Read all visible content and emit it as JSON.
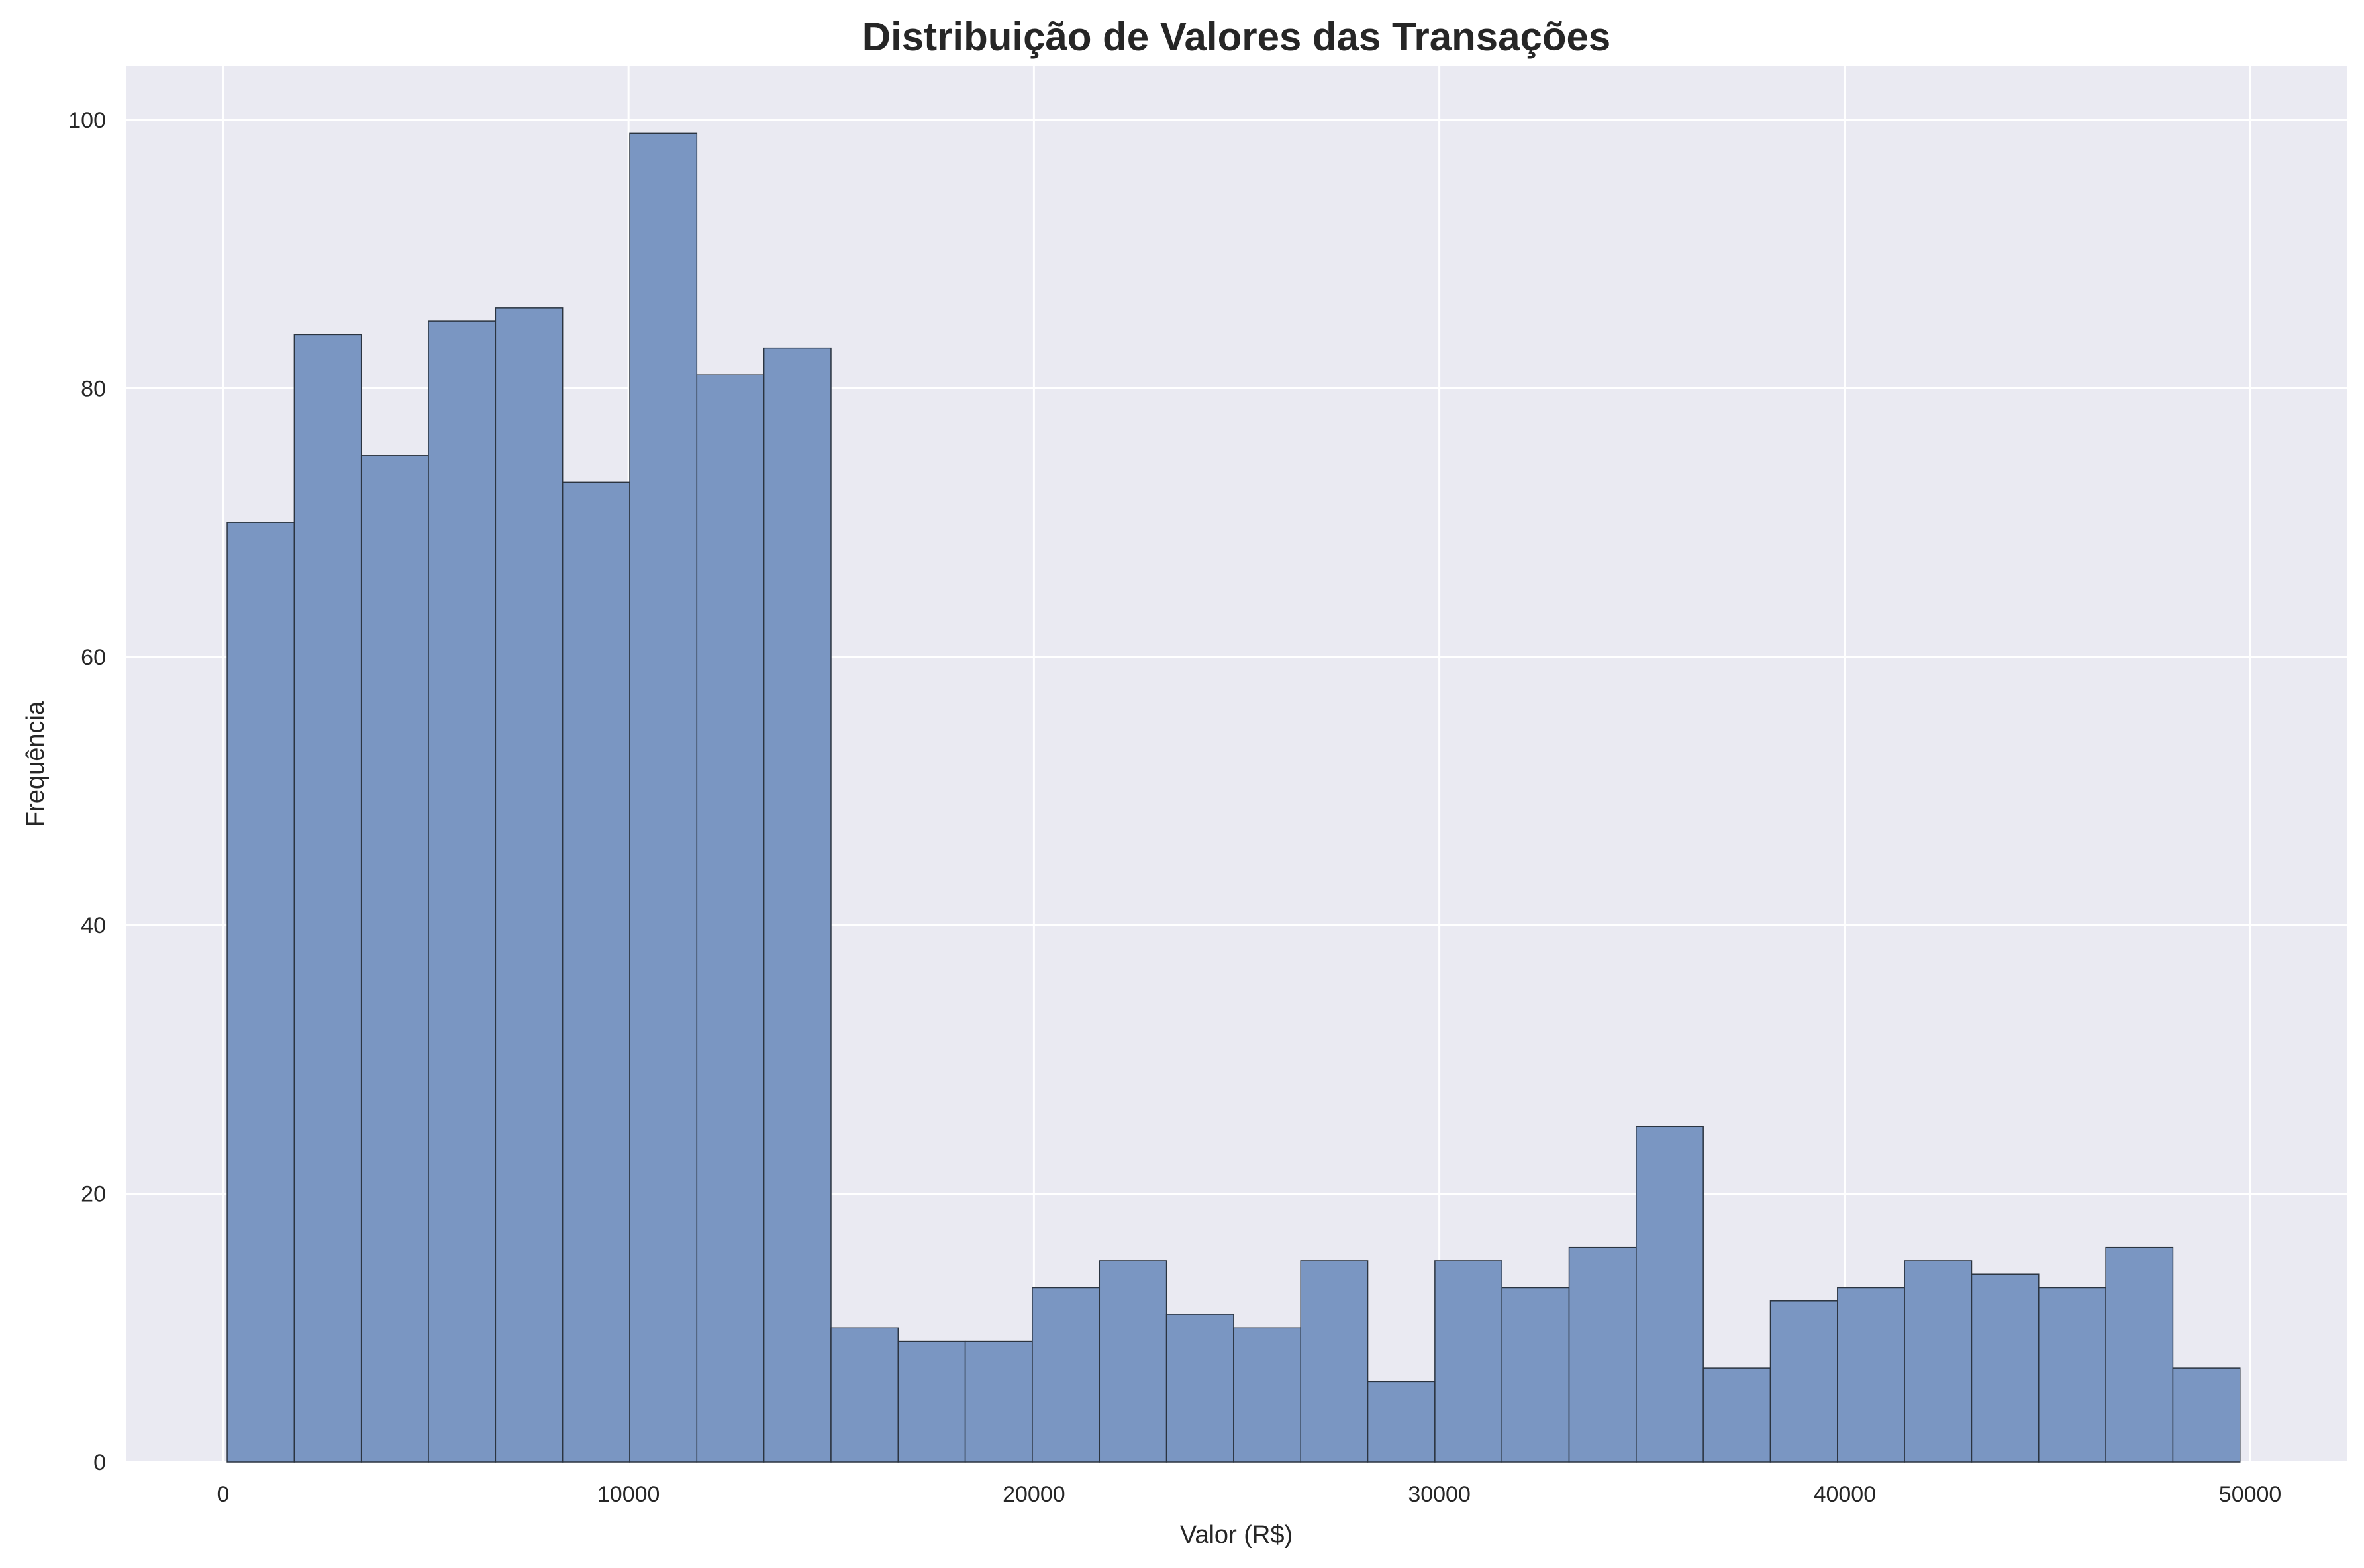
{
  "chart_data": {
    "type": "histogram",
    "title": "Distribuição de Valores das Transações",
    "xlabel": "Valor (R$)",
    "ylabel": "Frequência",
    "xlim": [
      -2400,
      52400
    ],
    "ylim": [
      0,
      104
    ],
    "xticks": [
      0,
      10000,
      20000,
      30000,
      40000,
      50000
    ],
    "yticks": [
      0,
      20,
      40,
      60,
      80,
      100
    ],
    "bin_start": 100,
    "bin_width": 1655,
    "counts": [
      70,
      84,
      75,
      85,
      86,
      73,
      99,
      81,
      83,
      10,
      9,
      9,
      13,
      15,
      11,
      10,
      15,
      6,
      15,
      13,
      16,
      25,
      7,
      12,
      13,
      15,
      14,
      13,
      16,
      7
    ],
    "grid": true,
    "colors": {
      "background": "#eaeaf2",
      "bar_fill": "#7a96c2",
      "bar_edge": "#2b3440",
      "grid": "#ffffff"
    }
  }
}
